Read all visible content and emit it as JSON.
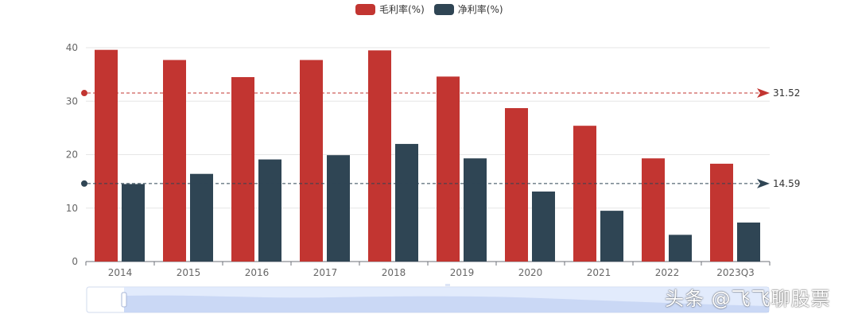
{
  "colors": {
    "gross": "#c23531",
    "net": "#2f4554",
    "axis": "#666666",
    "grid": "#e6e6e6",
    "zoom_fill": "#d6e2fb",
    "zoom_area": "#b7c9ef"
  },
  "watermark": "头条 @飞飞聊股票",
  "chart_data": {
    "type": "bar",
    "categories": [
      "2014",
      "2015",
      "2016",
      "2017",
      "2018",
      "2019",
      "2020",
      "2021",
      "2022",
      "2023Q3"
    ],
    "series": [
      {
        "name": "毛利率(%)",
        "values": [
          39.6,
          37.7,
          34.5,
          37.7,
          39.5,
          34.6,
          28.7,
          25.4,
          19.3,
          18.3
        ]
      },
      {
        "name": "净利率(%)",
        "values": [
          14.5,
          16.4,
          19.1,
          19.9,
          22.0,
          19.3,
          13.1,
          9.5,
          5.0,
          7.3
        ]
      }
    ],
    "averages": [
      {
        "series": "毛利率(%)",
        "value": 31.52,
        "label": "31.52"
      },
      {
        "series": "净利率(%)",
        "value": 14.59,
        "label": "14.59"
      }
    ],
    "yticks": [
      "0",
      "10",
      "20",
      "30",
      "40"
    ],
    "ylim": [
      0,
      40
    ],
    "legend_position": "top-center",
    "grid": true,
    "data_zoom": true
  }
}
